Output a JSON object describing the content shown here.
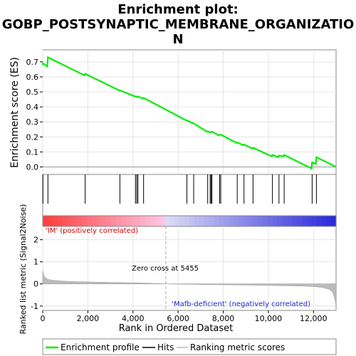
{
  "title_line1": "Enrichment plot:",
  "title_line2": "GOBP_POSTSYNAPTIC_MEMBRANE_ORGANIZATIO",
  "title_line3": "N",
  "top_ylabel": "Enrichment score (ES)",
  "bottom_ylabel_1": "Ranked list metric (Signal2Noise)",
  "xlabel": "Rank in Ordered Dataset",
  "pos_label": "'IM' (positively correlated)",
  "neg_label": "'Mafb-deficient' (negatively correlated)",
  "zero_cross_label": "Zero cross at 5455",
  "legend": {
    "profile": "Enrichment profile",
    "hits": "Hits",
    "ranking": "Ranking metric scores"
  },
  "colors": {
    "profile": "#00ee00",
    "hits": "#000000",
    "ranking": "#bbbbbb",
    "pos": "#ff0000",
    "neg": "#0000ff"
  },
  "chart_data": {
    "type": "line",
    "x_range": [
      0,
      13000
    ],
    "es_ylim": [
      -0.05,
      0.78
    ],
    "metric_ylim": [
      -1.2,
      2.6
    ],
    "x_ticks": [
      0,
      2000,
      4000,
      6000,
      8000,
      10000,
      12000
    ],
    "x_tick_labels": [
      "0",
      "2,000",
      "4,000",
      "6,000",
      "8,000",
      "10,000",
      "12,000"
    ],
    "es_ticks": [
      0.0,
      0.1,
      0.2,
      0.3,
      0.4,
      0.5,
      0.6,
      0.7
    ],
    "es_tick_labels": [
      "0.0",
      "0.1",
      "0.2",
      "0.3",
      "0.4",
      "0.5",
      "0.6",
      "0.7"
    ],
    "metric_ticks": [
      -1,
      0,
      1,
      2
    ],
    "metric_tick_labels": [
      "-1",
      "0",
      "1",
      "2"
    ],
    "zero_cross": 5455,
    "hits": [
      10,
      230,
      1880,
      3420,
      4110,
      4170,
      4220,
      4470,
      6390,
      6690,
      7310,
      7420,
      7460,
      7500,
      7840,
      7890,
      8620,
      8920,
      9320,
      10180,
      10470,
      10700,
      11940,
      12130
    ],
    "es_profile": [
      [
        0,
        0.68
      ],
      [
        10,
        0.69
      ],
      [
        200,
        0.67
      ],
      [
        230,
        0.73
      ],
      [
        1850,
        0.61
      ],
      [
        1880,
        0.62
      ],
      [
        3390,
        0.51
      ],
      [
        3420,
        0.51
      ],
      [
        4080,
        0.47
      ],
      [
        4110,
        0.47
      ],
      [
        4170,
        0.465
      ],
      [
        4220,
        0.47
      ],
      [
        4440,
        0.455
      ],
      [
        4470,
        0.46
      ],
      [
        6360,
        0.31
      ],
      [
        6390,
        0.31
      ],
      [
        6660,
        0.29
      ],
      [
        6690,
        0.29
      ],
      [
        7280,
        0.235
      ],
      [
        7310,
        0.238
      ],
      [
        7420,
        0.23
      ],
      [
        7460,
        0.233
      ],
      [
        7500,
        0.235
      ],
      [
        7810,
        0.21
      ],
      [
        7840,
        0.213
      ],
      [
        7890,
        0.215
      ],
      [
        8590,
        0.16
      ],
      [
        8620,
        0.163
      ],
      [
        8890,
        0.145
      ],
      [
        8920,
        0.15
      ],
      [
        9290,
        0.122
      ],
      [
        9320,
        0.128
      ],
      [
        10150,
        0.07
      ],
      [
        10180,
        0.08
      ],
      [
        10440,
        0.065
      ],
      [
        10470,
        0.075
      ],
      [
        10670,
        0.07
      ],
      [
        10700,
        0.08
      ],
      [
        11910,
        -0.01
      ],
      [
        11940,
        0.03
      ],
      [
        12100,
        0.02
      ],
      [
        12130,
        0.065
      ],
      [
        13000,
        0.0
      ]
    ],
    "metric_profile": [
      [
        0,
        0.6
      ],
      [
        30,
        0.45
      ],
      [
        80,
        0.32
      ],
      [
        200,
        0.22
      ],
      [
        400,
        0.17
      ],
      [
        800,
        0.13
      ],
      [
        1500,
        0.1
      ],
      [
        2500,
        0.08
      ],
      [
        3500,
        0.06
      ],
      [
        4500,
        0.04
      ],
      [
        5455,
        0.0
      ],
      [
        6500,
        -0.02
      ],
      [
        8000,
        -0.04
      ],
      [
        9500,
        -0.06
      ],
      [
        10500,
        -0.08
      ],
      [
        11500,
        -0.1
      ],
      [
        12000,
        -0.12
      ],
      [
        12400,
        -0.16
      ],
      [
        12700,
        -0.25
      ],
      [
        12850,
        -0.38
      ],
      [
        12950,
        -0.7
      ],
      [
        13000,
        -1.0
      ]
    ]
  }
}
